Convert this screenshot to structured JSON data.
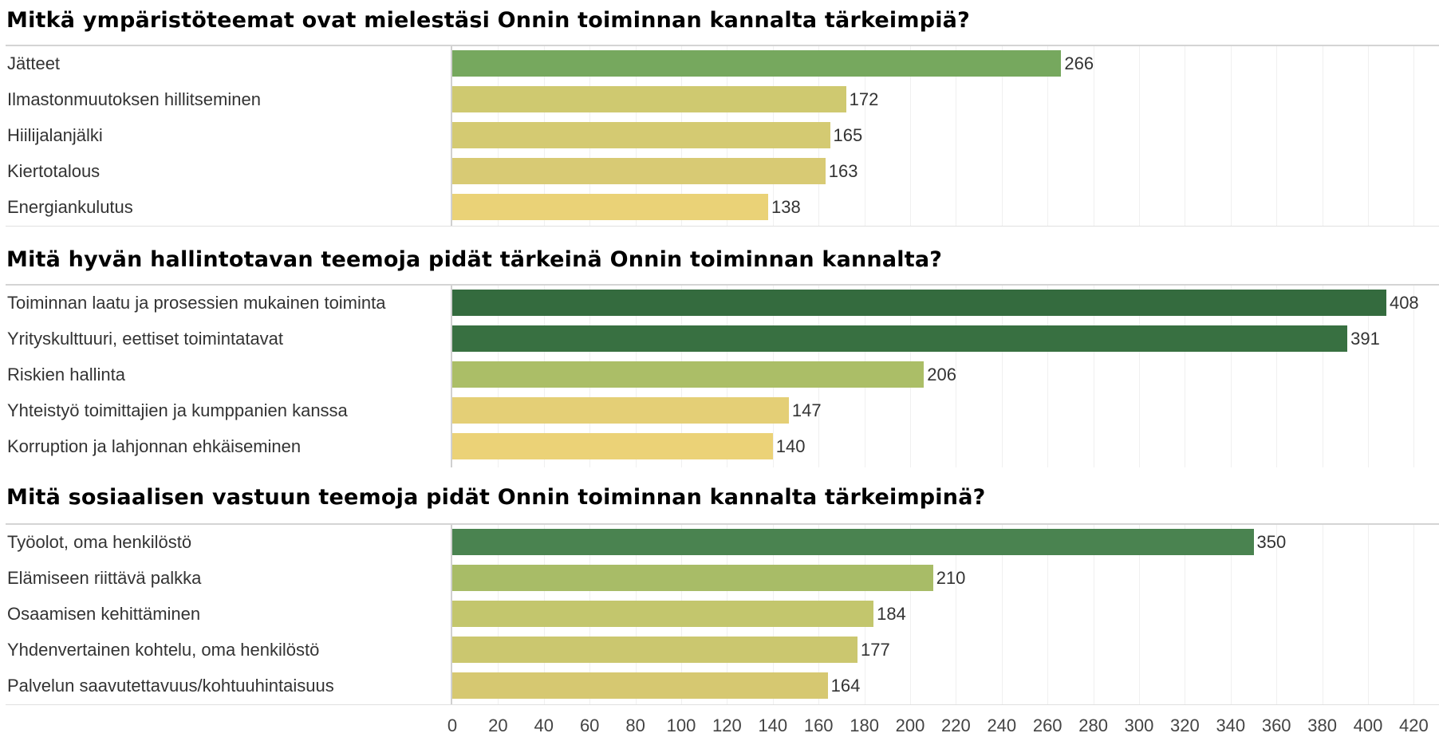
{
  "chart_data": [
    {
      "type": "bar",
      "orientation": "horizontal",
      "title": "Mitkä ympäristöteemat ovat mielestäsi Onnin toiminnan kannalta tärkeimpiä?",
      "categories": [
        "Jätteet",
        "Ilmastonmuutoksen hillitseminen",
        "Hiilijalanjälki",
        "Kiertotalous",
        "Energiankulutus"
      ],
      "values": [
        266,
        172,
        165,
        163,
        138
      ],
      "colors": [
        "#76a85e",
        "#cfc970",
        "#d4ca72",
        "#d8ca74",
        "#ead277"
      ],
      "xlabel": "",
      "ylabel": "",
      "xlim": [
        0,
        430
      ]
    },
    {
      "type": "bar",
      "orientation": "horizontal",
      "title": "Mitä hyvän hallintotavan teemoja pidät tärkeinä Onnin toiminnan kannalta?",
      "categories": [
        "Toiminnan laatu ja prosessien mukainen toiminta",
        "Yrityskulttuuri, eettiset toimintatavat",
        "Riskien hallinta",
        "Yhteistyö toimittajien ja kumppanien kanssa",
        "Korruption ja lahjonnan ehkäiseminen"
      ],
      "values": [
        408,
        391,
        206,
        147,
        140
      ],
      "colors": [
        "#346b3e",
        "#387041",
        "#abbe67",
        "#e4cf76",
        "#ebd277"
      ],
      "xlabel": "",
      "ylabel": "",
      "xlim": [
        0,
        430
      ]
    },
    {
      "type": "bar",
      "orientation": "horizontal",
      "title": "Mitä sosiaalisen vastuun teemoja pidät Onnin toiminnan kannalta tärkeimpinä?",
      "categories": [
        "Työolot, oma henkilöstö",
        "Elämiseen riittävä palkka",
        "Osaamisen kehittäminen",
        "Yhdenvertainen kohtelu, oma henkilöstö",
        "Palvelun saavutettavuus/kohtuuhintaisuus"
      ],
      "values": [
        350,
        210,
        184,
        177,
        164
      ],
      "colors": [
        "#4a8350",
        "#a8bc67",
        "#c3c66d",
        "#cbc76f",
        "#d6c871"
      ],
      "xlabel": "",
      "ylabel": "",
      "xlim": [
        0,
        430
      ]
    }
  ],
  "axis": {
    "ticks": [
      "0",
      "20",
      "40",
      "60",
      "80",
      "100",
      "120",
      "140",
      "160",
      "180",
      "200",
      "220",
      "240",
      "260",
      "280",
      "300",
      "320",
      "340",
      "360",
      "380",
      "400",
      "420"
    ]
  },
  "sections": [
    {
      "title": "Mitkä ympäristöteemat ovat mielestäsi Onnin toiminnan kannalta tärkeimpiä?",
      "rows": [
        {
          "label": "Jätteet",
          "value": "266"
        },
        {
          "label": "Ilmastonmuutoksen hillitseminen",
          "value": "172"
        },
        {
          "label": "Hiilijalanjälki",
          "value": "165"
        },
        {
          "label": "Kiertotalous",
          "value": "163"
        },
        {
          "label": "Energiankulutus",
          "value": "138"
        }
      ]
    },
    {
      "title": "Mitä hyvän hallintotavan teemoja pidät tärkeinä Onnin toiminnan kannalta?",
      "rows": [
        {
          "label": "Toiminnan laatu ja prosessien mukainen toiminta",
          "value": "408"
        },
        {
          "label": "Yrityskulttuuri, eettiset toimintatavat",
          "value": "391"
        },
        {
          "label": "Riskien hallinta",
          "value": "206"
        },
        {
          "label": "Yhteistyö toimittajien ja kumppanien kanssa",
          "value": "147"
        },
        {
          "label": "Korruption ja lahjonnan ehkäiseminen",
          "value": "140"
        }
      ]
    },
    {
      "title": "Mitä sosiaalisen vastuun teemoja pidät Onnin toiminnan kannalta tärkeimpinä?",
      "rows": [
        {
          "label": "Työolot, oma henkilöstö",
          "value": "350"
        },
        {
          "label": "Elämiseen riittävä palkka",
          "value": "210"
        },
        {
          "label": "Osaamisen kehittäminen",
          "value": "184"
        },
        {
          "label": "Yhdenvertainen kohtelu, oma henkilöstö",
          "value": "177"
        },
        {
          "label": "Palvelun saavutettavuus/kohtuuhintaisuus",
          "value": "164"
        }
      ]
    }
  ]
}
